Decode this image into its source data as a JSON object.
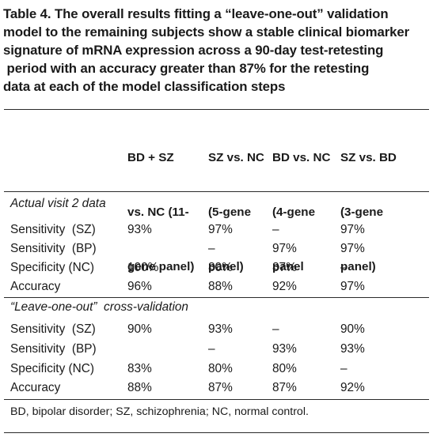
{
  "caption": {
    "lines": [
      "Table 4. The overall results fitting a “leave-one-out” validation",
      "model to the remaining subjects show a stable clinical biomarker",
      "signature of mRNA expression across a 90-day test-retesting",
      " period with an accuracy greater than 87% for the retesting",
      "data at each of the model classification steps"
    ]
  },
  "columns": [
    {
      "lines": [
        "BD + SZ",
        "vs. NC (11-",
        "gene panel)"
      ]
    },
    {
      "lines": [
        "SZ vs. NC",
        "(5-gene",
        "panel)"
      ]
    },
    {
      "lines": [
        "BD vs. NC",
        "(4-gene",
        "panel"
      ]
    },
    {
      "lines": [
        "SZ vs. BD",
        "(3-gene",
        "panel)"
      ]
    }
  ],
  "sections": [
    {
      "title": "Actual visit 2 data",
      "rows": [
        {
          "label": "Sensitivity  (SZ)",
          "values": [
            "93%",
            "97%",
            "–",
            "97%"
          ]
        },
        {
          "label": "Sensitivity  (BP)",
          "values": [
            "",
            "–",
            "97%",
            "97%"
          ]
        },
        {
          "label": "Specificity (NC)",
          "values": [
            "100%",
            "80%",
            "87%",
            "–"
          ]
        },
        {
          "label": "Accuracy",
          "values": [
            "96%",
            "88%",
            "92%",
            "97%"
          ]
        }
      ]
    },
    {
      "title": "“Leave-one-out”  cross-validation",
      "rows": [
        {
          "label": "Sensitivity  (SZ)",
          "values": [
            "90%",
            "93%",
            "–",
            "90%"
          ]
        },
        {
          "label": "Sensitivity  (BP)",
          "values": [
            "",
            "–",
            "93%",
            "93%"
          ]
        },
        {
          "label": "Specificity (NC)",
          "values": [
            "83%",
            "80%",
            "80%",
            "–"
          ]
        },
        {
          "label": "Accuracy",
          "values": [
            "88%",
            "87%",
            "87%",
            "92%"
          ]
        }
      ]
    }
  ],
  "footnote": "BD, bipolar disorder; SZ, schizophrenia; NC, normal control."
}
